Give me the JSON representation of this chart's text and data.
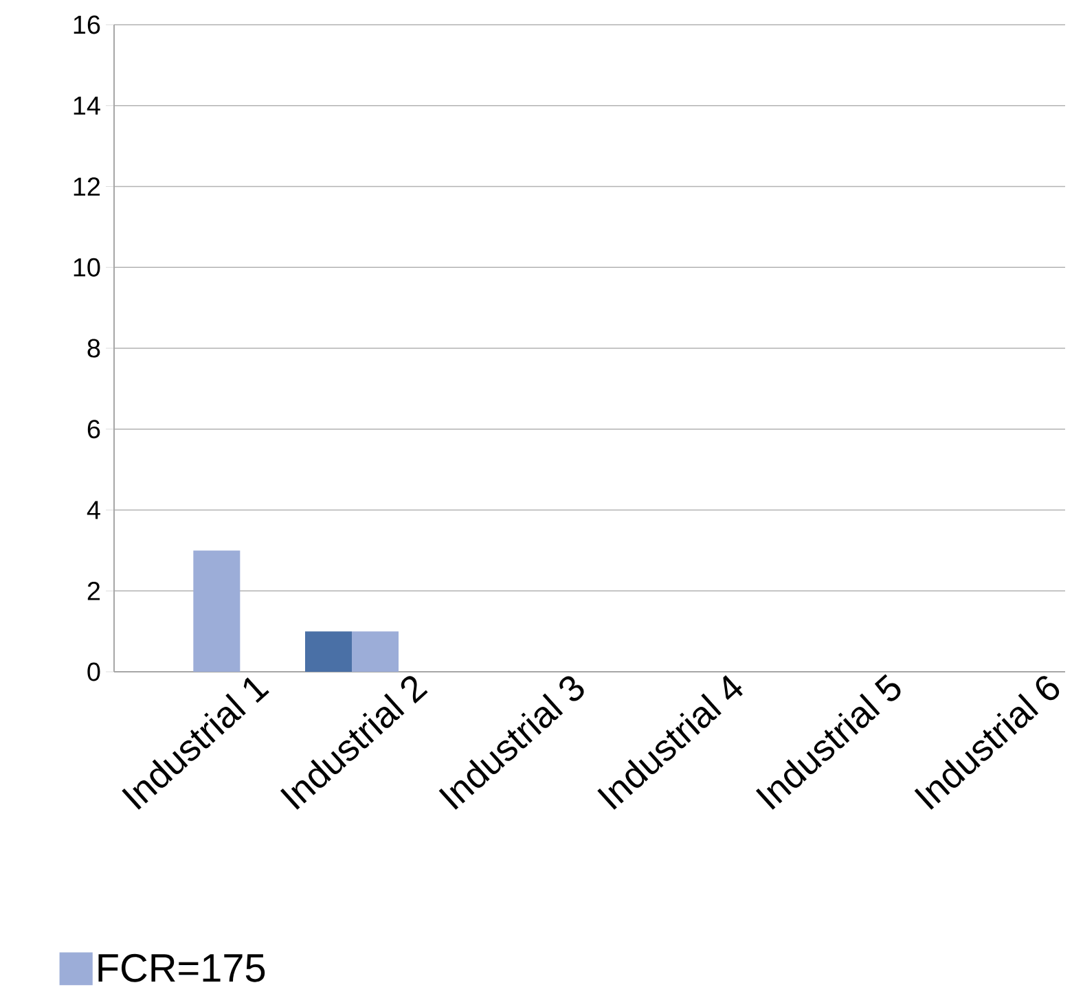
{
  "chart_data": {
    "type": "bar",
    "categories": [
      "Industrial 1",
      "Industrial 2",
      "Industrial 3",
      "Industrial 4",
      "Industrial 5",
      "Industrial 6"
    ],
    "series": [
      {
        "color": "#4a70a6",
        "values": [
          0,
          1,
          0,
          0,
          0,
          0
        ]
      },
      {
        "name": "FCR=175",
        "color": "#9cadd8",
        "values": [
          3,
          1,
          0,
          0,
          0,
          0
        ]
      }
    ],
    "ylim": [
      0,
      16
    ],
    "yticks": [
      0,
      2,
      4,
      6,
      8,
      10,
      12,
      14,
      16
    ],
    "grid": "y",
    "legend": "bottom left"
  }
}
